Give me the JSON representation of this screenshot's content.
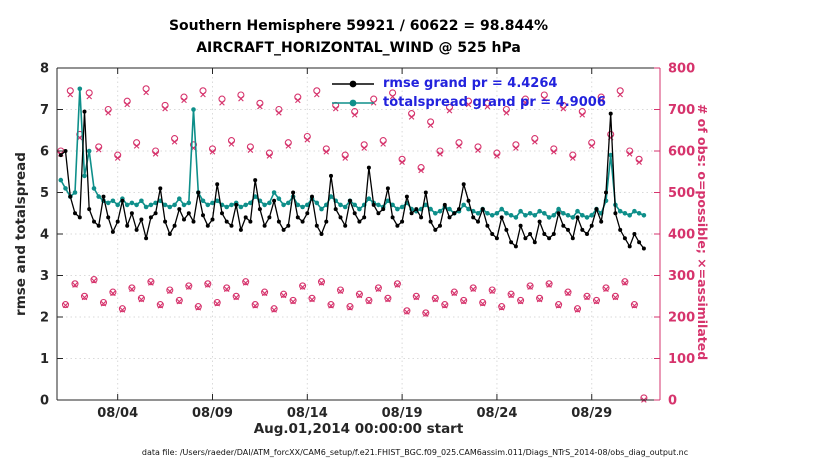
{
  "figure": {
    "title_line1": "Southern Hemisphere 59921 / 60622 = 98.844%",
    "title_line2": "AIRCRAFT_HORIZONTAL_WIND @ 525 hPa",
    "caption": "data file: /Users/raeder/DAI/ATM_forcXX/CAM6_setup/f.e21.FHIST_BGC.f09_025.CAM6assim.011/Diags_NTrS_2014-08/obs_diag_output.nc"
  },
  "axes": {
    "left_label": "rmse and totalspread",
    "right_label": "# of obs: o=possible; ×=assimilated",
    "x_label": "Aug.01,2014 00:00:00 start"
  },
  "legend": {
    "rmse_label": "rmse grand pr = 4.4264",
    "spread_label": "totalspread grand pr = 4.9006"
  },
  "colors": {
    "pink": "#d6336c",
    "teal": "#0e8f8a",
    "series_black": "#000000",
    "legend_text": "#2222dd",
    "grid": "#dadada",
    "axis_text": "#262626"
  },
  "chart_data": {
    "type": "line",
    "title": "Southern Hemisphere 59921 / 60622 = 98.844% | AIRCRAFT_HORIZONTAL_WIND @ 525 hPa",
    "x_unit": "day of August 2014, 6-hourly bins",
    "x_start_day": 1.0,
    "x_step_days": 0.25,
    "xlim": [
      0.8,
      32.6
    ],
    "x_ticks": {
      "days": [
        4,
        9,
        14,
        19,
        24,
        29
      ],
      "labels": [
        "08/04",
        "08/09",
        "08/14",
        "08/19",
        "08/24",
        "08/29"
      ]
    },
    "left_axis": {
      "label": "rmse and totalspread",
      "lim": [
        0,
        8
      ],
      "ticks": [
        0,
        1,
        2,
        3,
        4,
        5,
        6,
        7,
        8
      ]
    },
    "right_axis": {
      "label": "# of obs: o=possible; ×=assimilated",
      "lim": [
        0,
        800
      ],
      "ticks": [
        0,
        100,
        200,
        300,
        400,
        500,
        600,
        700,
        800
      ]
    },
    "grid": true,
    "legend_position": "top-center-inside",
    "series": [
      {
        "name": "possible observations",
        "legend": "o=possible",
        "axis": "right",
        "marker": "open-circle",
        "marker_size": 3.0,
        "color": "#d6336c",
        "values": [
          600,
          230,
          745,
          280,
          640,
          250,
          740,
          290,
          610,
          235,
          700,
          260,
          590,
          220,
          720,
          270,
          620,
          245,
          750,
          285,
          600,
          230,
          710,
          265,
          630,
          240,
          730,
          275,
          615,
          225,
          745,
          280,
          605,
          235,
          725,
          270,
          625,
          250,
          735,
          285,
          610,
          230,
          715,
          260,
          595,
          220,
          700,
          255,
          620,
          240,
          730,
          275,
          635,
          245,
          745,
          285,
          605,
          230,
          710,
          265,
          590,
          225,
          695,
          255,
          615,
          240,
          725,
          270,
          625,
          245,
          740,
          280,
          580,
          215,
          690,
          250,
          560,
          210,
          670,
          245,
          600,
          230,
          705,
          260,
          620,
          240,
          720,
          270,
          610,
          235,
          715,
          265,
          595,
          225,
          700,
          255,
          615,
          240,
          725,
          275,
          630,
          245,
          735,
          280,
          605,
          230,
          710,
          260,
          590,
          220,
          695,
          250,
          620,
          240,
          730,
          270,
          640,
          250,
          745,
          285,
          600,
          230,
          580,
          5
        ]
      },
      {
        "name": "assimilated observations",
        "legend": "×=assimilated",
        "axis": "right",
        "marker": "x",
        "marker_size": 2.4,
        "color": "#d6336c",
        "values": [
          593,
          228,
          736,
          277,
          632,
          247,
          731,
          287,
          603,
          232,
          692,
          257,
          583,
          217,
          712,
          267,
          612,
          242,
          741,
          282,
          593,
          227,
          702,
          262,
          622,
          237,
          722,
          272,
          607,
          222,
          736,
          277,
          598,
          232,
          716,
          267,
          617,
          247,
          726,
          282,
          602,
          227,
          707,
          257,
          588,
          217,
          692,
          252,
          612,
          237,
          722,
          272,
          627,
          242,
          736,
          282,
          598,
          227,
          702,
          262,
          583,
          222,
          687,
          252,
          607,
          237,
          716,
          267,
          617,
          242,
          731,
          277,
          573,
          212,
          682,
          247,
          553,
          207,
          662,
          242,
          593,
          227,
          697,
          257,
          612,
          237,
          712,
          267,
          602,
          232,
          707,
          262,
          588,
          222,
          692,
          252,
          607,
          237,
          716,
          272,
          622,
          242,
          726,
          277,
          598,
          227,
          702,
          257,
          583,
          217,
          687,
          247,
          612,
          237,
          722,
          267,
          632,
          247,
          736,
          282,
          593,
          227,
          573,
          0
        ]
      },
      {
        "name": "totalspread",
        "grand_mean": 4.9006,
        "axis": "left",
        "marker": "filled-circle",
        "marker_size": 2.3,
        "line_width": 1.6,
        "color": "#0e8f8a",
        "values": [
          5.3,
          5.1,
          4.9,
          5.0,
          7.5,
          5.4,
          6.0,
          5.1,
          4.9,
          4.8,
          4.75,
          4.8,
          4.7,
          4.85,
          4.7,
          4.75,
          4.7,
          4.8,
          4.65,
          4.7,
          4.75,
          4.8,
          4.7,
          4.65,
          4.7,
          4.85,
          4.7,
          4.75,
          7.0,
          5.0,
          4.8,
          4.7,
          4.75,
          4.8,
          4.7,
          4.65,
          4.7,
          4.75,
          4.65,
          4.7,
          4.75,
          4.9,
          4.8,
          4.7,
          4.75,
          5.0,
          4.85,
          4.7,
          4.75,
          4.9,
          4.7,
          4.65,
          4.7,
          4.85,
          4.75,
          4.6,
          4.7,
          4.9,
          4.8,
          4.7,
          4.65,
          4.8,
          4.7,
          4.6,
          4.7,
          4.85,
          4.75,
          4.7,
          4.65,
          4.8,
          4.7,
          4.6,
          4.65,
          4.75,
          4.6,
          4.55,
          4.6,
          4.7,
          4.6,
          4.5,
          4.55,
          4.65,
          4.6,
          4.5,
          4.55,
          4.7,
          4.6,
          4.55,
          4.5,
          4.6,
          4.5,
          4.45,
          4.5,
          4.6,
          4.5,
          4.45,
          4.4,
          4.55,
          4.45,
          4.5,
          4.45,
          4.55,
          4.5,
          4.4,
          4.45,
          4.6,
          4.5,
          4.45,
          4.4,
          4.55,
          4.45,
          4.4,
          4.45,
          4.6,
          4.5,
          4.8,
          5.9,
          4.7,
          4.55,
          4.5,
          4.45,
          4.55,
          4.5,
          4.45
        ]
      },
      {
        "name": "rmse",
        "grand_mean": 4.4264,
        "axis": "left",
        "marker": "filled-circle",
        "marker_size": 2.0,
        "line_width": 1.3,
        "color": "#000000",
        "values": [
          5.9,
          6.0,
          4.9,
          4.5,
          4.4,
          6.95,
          4.6,
          4.3,
          4.2,
          4.9,
          4.4,
          4.05,
          4.3,
          4.8,
          4.2,
          4.5,
          4.1,
          4.35,
          3.9,
          4.4,
          4.5,
          5.1,
          4.3,
          4.0,
          4.2,
          4.6,
          4.35,
          4.5,
          4.3,
          5.0,
          4.45,
          4.2,
          4.35,
          5.2,
          4.5,
          4.3,
          4.2,
          4.7,
          4.1,
          4.4,
          4.3,
          5.3,
          4.6,
          4.2,
          4.4,
          4.8,
          4.3,
          4.1,
          4.2,
          5.0,
          4.4,
          4.3,
          4.5,
          4.9,
          4.2,
          4.0,
          4.3,
          5.4,
          4.6,
          4.4,
          4.2,
          4.8,
          4.5,
          4.3,
          4.4,
          5.6,
          4.7,
          4.5,
          4.6,
          5.1,
          4.4,
          4.2,
          4.3,
          4.9,
          4.5,
          4.6,
          4.4,
          5.0,
          4.3,
          4.1,
          4.2,
          4.7,
          4.4,
          4.5,
          4.6,
          5.2,
          4.8,
          4.4,
          4.3,
          4.6,
          4.2,
          4.0,
          3.9,
          4.4,
          4.1,
          3.8,
          3.7,
          4.2,
          3.9,
          4.0,
          3.8,
          4.3,
          4.0,
          3.9,
          4.0,
          4.5,
          4.2,
          4.1,
          3.9,
          4.4,
          4.1,
          4.0,
          4.2,
          4.6,
          4.3,
          5.0,
          6.9,
          4.5,
          4.1,
          3.9,
          3.7,
          4.0,
          3.8,
          3.65
        ]
      }
    ]
  }
}
